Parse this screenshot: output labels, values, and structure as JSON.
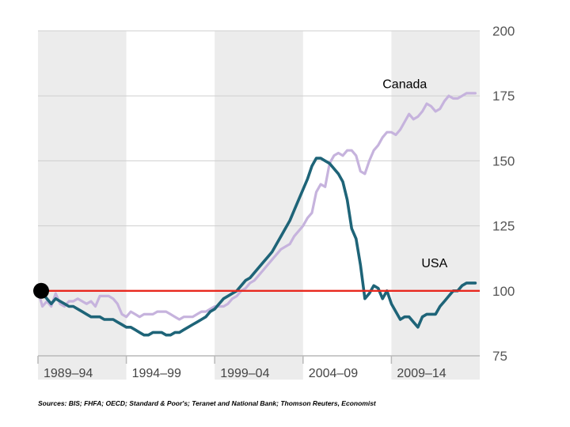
{
  "chart_data": {
    "type": "line",
    "x_period_labels": [
      "1989–94",
      "1994–99",
      "1999–04",
      "2004–09",
      "2009–14"
    ],
    "ylim": [
      75,
      200
    ],
    "yticks": [
      75,
      100,
      125,
      150,
      175,
      200
    ],
    "baseline_value": 100,
    "grid": true,
    "y_axis_position": "right",
    "series": [
      {
        "name": "Canada",
        "color": "#c6b3dd",
        "x": [
          1989.5,
          1989.75,
          1990.0,
          1990.25,
          1990.5,
          1990.75,
          1991.0,
          1991.25,
          1991.5,
          1991.75,
          1992.0,
          1992.25,
          1992.5,
          1992.75,
          1993.0,
          1993.25,
          1993.5,
          1993.75,
          1994.0,
          1994.25,
          1994.5,
          1994.75,
          1995.0,
          1995.25,
          1995.5,
          1995.75,
          1996.0,
          1996.25,
          1996.5,
          1996.75,
          1997.0,
          1997.25,
          1997.5,
          1997.75,
          1998.0,
          1998.25,
          1998.5,
          1998.75,
          1999.0,
          1999.25,
          1999.5,
          1999.75,
          2000.0,
          2000.25,
          2000.5,
          2000.75,
          2001.0,
          2001.25,
          2001.5,
          2001.75,
          2002.0,
          2002.25,
          2002.5,
          2002.75,
          2003.0,
          2003.25,
          2003.5,
          2003.75,
          2004.0,
          2004.25,
          2004.5,
          2004.75,
          2005.0,
          2005.25,
          2005.5,
          2005.75,
          2006.0,
          2006.25,
          2006.5,
          2006.75,
          2007.0,
          2007.25,
          2007.5,
          2007.75,
          2008.0,
          2008.25,
          2008.5,
          2008.75,
          2009.0,
          2009.25,
          2009.5,
          2009.75,
          2010.0,
          2010.25,
          2010.5,
          2010.75,
          2011.0,
          2011.25,
          2011.5,
          2011.75,
          2012.0,
          2012.25,
          2012.5,
          2012.75,
          2013.0,
          2013.25,
          2013.5,
          2013.75,
          2014.0,
          2014.25
        ],
        "values": [
          100,
          94,
          96,
          94,
          99,
          95,
          94,
          96,
          96,
          97,
          96,
          95,
          96,
          94,
          98,
          98,
          98,
          97,
          95,
          91,
          90,
          92,
          91,
          90,
          91,
          91,
          91,
          92,
          92,
          92,
          91,
          90,
          89,
          90,
          90,
          90,
          91,
          92,
          92,
          93,
          94,
          94,
          94,
          95,
          97,
          98,
          100,
          101,
          103,
          104,
          106,
          108,
          110,
          112,
          114,
          116,
          117,
          118,
          121,
          123,
          125,
          128,
          130,
          138,
          141,
          140,
          149,
          152,
          153,
          152,
          154,
          154,
          152,
          146,
          145,
          150,
          154,
          156,
          159,
          161,
          161,
          160,
          162,
          165,
          168,
          166,
          167,
          169,
          172,
          171,
          169,
          170,
          173,
          175,
          174,
          174,
          175,
          176,
          176,
          176
        ]
      },
      {
        "name": "USA",
        "color": "#1e6478",
        "x": [
          1989.5,
          1989.75,
          1990.0,
          1990.25,
          1990.5,
          1990.75,
          1991.0,
          1991.25,
          1991.5,
          1991.75,
          1992.0,
          1992.25,
          1992.5,
          1992.75,
          1993.0,
          1993.25,
          1993.5,
          1993.75,
          1994.0,
          1994.25,
          1994.5,
          1994.75,
          1995.0,
          1995.25,
          1995.5,
          1995.75,
          1996.0,
          1996.25,
          1996.5,
          1996.75,
          1997.0,
          1997.25,
          1997.5,
          1997.75,
          1998.0,
          1998.25,
          1998.5,
          1998.75,
          1999.0,
          1999.25,
          1999.5,
          1999.75,
          2000.0,
          2000.25,
          2000.5,
          2000.75,
          2001.0,
          2001.25,
          2001.5,
          2001.75,
          2002.0,
          2002.25,
          2002.5,
          2002.75,
          2003.0,
          2003.25,
          2003.5,
          2003.75,
          2004.0,
          2004.25,
          2004.5,
          2004.75,
          2005.0,
          2005.25,
          2005.5,
          2005.75,
          2006.0,
          2006.25,
          2006.5,
          2006.75,
          2007.0,
          2007.25,
          2007.5,
          2007.75,
          2008.0,
          2008.25,
          2008.5,
          2008.75,
          2009.0,
          2009.25,
          2009.5,
          2009.75,
          2010.0,
          2010.25,
          2010.5,
          2010.75,
          2011.0,
          2011.25,
          2011.5,
          2011.75,
          2012.0,
          2012.25,
          2012.5,
          2012.75,
          2013.0,
          2013.25,
          2013.5,
          2013.75,
          2014.0,
          2014.25
        ],
        "values": [
          100,
          99,
          97,
          95,
          97,
          96,
          95,
          94,
          94,
          93,
          92,
          91,
          90,
          90,
          90,
          89,
          89,
          89,
          88,
          87,
          86,
          86,
          85,
          84,
          83,
          83,
          84,
          84,
          84,
          83,
          83,
          84,
          84,
          85,
          86,
          87,
          88,
          89,
          90,
          92,
          93,
          95,
          97,
          98,
          99,
          100,
          102,
          104,
          105,
          107,
          109,
          111,
          113,
          115,
          118,
          121,
          124,
          127,
          131,
          135,
          139,
          143,
          148,
          151,
          151,
          150,
          149,
          147,
          145,
          142,
          135,
          124,
          120,
          110,
          97,
          99,
          102,
          101,
          97,
          100,
          95,
          92,
          89,
          90,
          90,
          88,
          86,
          90,
          91,
          91,
          91,
          94,
          96,
          98,
          100,
          100,
          102,
          103,
          103,
          103
        ]
      }
    ],
    "annotations": [
      "Canada",
      "USA"
    ]
  },
  "source_note": "Sources: BIS; FHFA; OECD; Standard & Poor's; Teranet and National Bank; Thomson Reuters, Economist"
}
